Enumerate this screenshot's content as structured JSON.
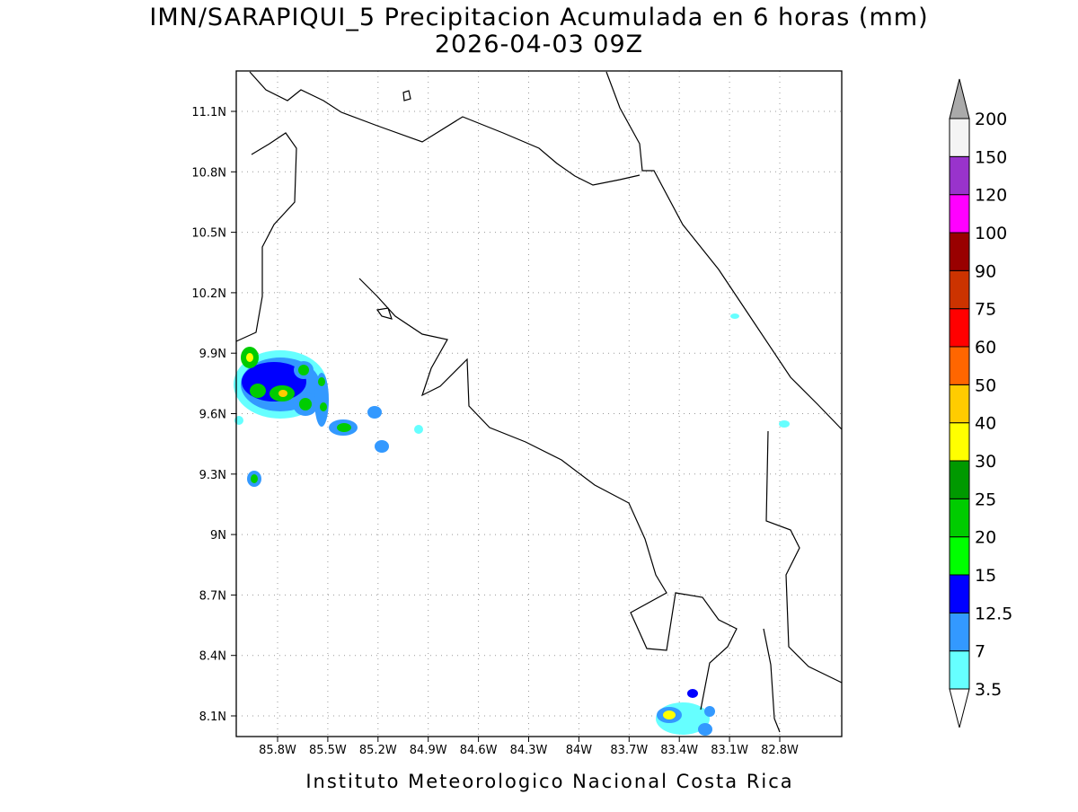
{
  "header": {
    "title": "IMN/SARAPIQUI_5 Precipitacion Acumulada en 6 horas (mm)",
    "subtitle": "2026-04-03 09Z"
  },
  "map": {
    "lon_ticks": [
      "85.8W",
      "85.5W",
      "85.2W",
      "84.9W",
      "84.6W",
      "84.3W",
      "84W",
      "83.7W",
      "83.4W",
      "83.1W",
      "82.8W"
    ],
    "lat_ticks": [
      "11.1N",
      "10.8N",
      "10.5N",
      "10.2N",
      "9.9N",
      "9.6N",
      "9.3N",
      "9N",
      "8.7N",
      "8.4N",
      "8.1N"
    ],
    "grid": true
  },
  "colorbar": {
    "levels": [
      3.5,
      7,
      12.5,
      15,
      20,
      25,
      30,
      40,
      50,
      60,
      75,
      90,
      100,
      120,
      150,
      200
    ],
    "colors": [
      "#ffffff",
      "#66ffff",
      "#3399ff",
      "#0000ff",
      "#00ff00",
      "#00cc00",
      "#009900",
      "#ffff00",
      "#ffcc00",
      "#ff6600",
      "#ff0000",
      "#cc3300",
      "#990000",
      "#ff00ff",
      "#9933cc",
      "#f4f4f4",
      "#aaaaaa"
    ]
  },
  "footer": {
    "text": "Instituto Meteorologico Nacional Costa Rica"
  }
}
